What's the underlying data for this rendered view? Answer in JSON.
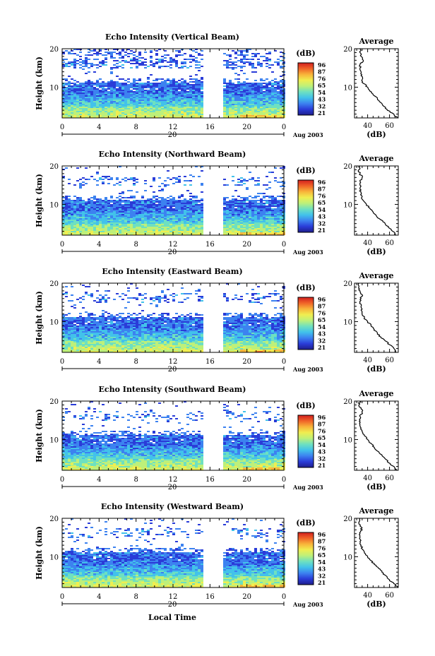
{
  "figure": {
    "xlabel": "Local Time",
    "ylabel": "Height (km)",
    "date_day": "20",
    "date_month": "Aug 2003",
    "colorbar_unit": "(dB)",
    "colorbar_ticks": [
      "96",
      "87",
      "76",
      "65",
      "54",
      "43",
      "32",
      "21"
    ],
    "average_title": "Average",
    "average_xlabel": "(dB)",
    "colormap": [
      "#1e1e8c",
      "#2a3cd8",
      "#3c82f0",
      "#42c2ea",
      "#6ee0c0",
      "#bdf07a",
      "#f0ee50",
      "#f8b43a",
      "#f06428",
      "#d21e1e"
    ]
  },
  "chart_data": [
    {
      "type": "heatmap",
      "title": "Echo Intensity (Vertical Beam)",
      "x_ticks": [
        "0",
        "4",
        "8",
        "12",
        "16",
        "20",
        "0"
      ],
      "xlim": [
        0,
        24
      ],
      "ylim": [
        2,
        20
      ],
      "y_ticks": [
        "10",
        "20"
      ],
      "gap_hours": [
        15.4,
        17.3
      ],
      "colorbar_range_db": [
        21,
        96
      ],
      "profile": {
        "title": "Average",
        "x_ticks": [
          "40",
          "60"
        ],
        "xlim": [
          28,
          68
        ],
        "height_km": [
          2,
          3,
          4,
          5,
          6,
          7,
          8,
          9,
          10,
          11,
          12,
          13,
          14,
          15,
          16,
          17,
          18,
          19,
          20
        ],
        "db": [
          67,
          64,
          58,
          55,
          52,
          49,
          45,
          42,
          40,
          36,
          35,
          34,
          34,
          33,
          33,
          36,
          34,
          33,
          33
        ]
      }
    },
    {
      "type": "heatmap",
      "title": "Echo Intensity (Northward Beam)",
      "x_ticks": [
        "0",
        "4",
        "8",
        "12",
        "16",
        "20",
        "0"
      ],
      "xlim": [
        0,
        24
      ],
      "ylim": [
        2,
        20
      ],
      "y_ticks": [
        "10",
        "20"
      ],
      "gap_hours": [
        15.4,
        17.3
      ],
      "colorbar_range_db": [
        21,
        96
      ],
      "profile": {
        "title": "Average",
        "x_ticks": [
          "40",
          "60"
        ],
        "xlim": [
          28,
          68
        ],
        "height_km": [
          2,
          3,
          4,
          5,
          6,
          7,
          8,
          9,
          10,
          11,
          12,
          13,
          14,
          15,
          16,
          17,
          18,
          19,
          20
        ],
        "db": [
          66,
          63,
          59,
          56,
          52,
          48,
          45,
          42,
          39,
          36,
          35,
          34,
          33,
          33,
          33,
          35,
          33,
          32,
          33
        ]
      }
    },
    {
      "type": "heatmap",
      "title": "Echo Intensity (Eastward Beam)",
      "x_ticks": [
        "0",
        "4",
        "8",
        "12",
        "16",
        "20",
        "0"
      ],
      "xlim": [
        0,
        24
      ],
      "ylim": [
        2,
        20
      ],
      "y_ticks": [
        "10",
        "20"
      ],
      "gap_hours": [
        15.4,
        17.3
      ],
      "colorbar_range_db": [
        21,
        96
      ],
      "profile": {
        "title": "Average",
        "x_ticks": [
          "40",
          "60"
        ],
        "xlim": [
          28,
          68
        ],
        "height_km": [
          2,
          3,
          4,
          5,
          6,
          7,
          8,
          9,
          10,
          11,
          12,
          13,
          14,
          15,
          16,
          17,
          18,
          19,
          20
        ],
        "db": [
          66,
          64,
          60,
          56,
          52,
          49,
          46,
          43,
          40,
          37,
          35,
          34,
          34,
          33,
          34,
          35,
          33,
          32,
          32
        ]
      }
    },
    {
      "type": "heatmap",
      "title": "Echo Intensity (Southward Beam)",
      "x_ticks": [
        "0",
        "4",
        "8",
        "12",
        "16",
        "20",
        "0"
      ],
      "xlim": [
        0,
        24
      ],
      "ylim": [
        2,
        20
      ],
      "y_ticks": [
        "10",
        "20"
      ],
      "gap_hours": [
        15.4,
        17.3
      ],
      "colorbar_range_db": [
        21,
        96
      ],
      "profile": {
        "title": "Average",
        "x_ticks": [
          "40",
          "60"
        ],
        "xlim": [
          28,
          68
        ],
        "height_km": [
          2,
          3,
          4,
          5,
          6,
          7,
          8,
          9,
          10,
          11,
          12,
          13,
          14,
          15,
          16,
          17,
          18,
          19,
          20
        ],
        "db": [
          67,
          64,
          59,
          56,
          53,
          49,
          46,
          43,
          40,
          37,
          35,
          34,
          33,
          33,
          33,
          35,
          34,
          32,
          33
        ]
      }
    },
    {
      "type": "heatmap",
      "title": "Echo Intensity (Westward Beam)",
      "x_ticks": [
        "0",
        "4",
        "8",
        "12",
        "16",
        "20",
        "0"
      ],
      "xlim": [
        0,
        24
      ],
      "ylim": [
        2,
        20
      ],
      "y_ticks": [
        "10",
        "20"
      ],
      "gap_hours": [
        15.4,
        17.3
      ],
      "colorbar_range_db": [
        21,
        96
      ],
      "profile": {
        "title": "Average",
        "x_ticks": [
          "40",
          "60"
        ],
        "xlim": [
          28,
          68
        ],
        "height_km": [
          2,
          3,
          4,
          5,
          6,
          7,
          8,
          9,
          10,
          11,
          12,
          13,
          14,
          15,
          16,
          17,
          18,
          19,
          20
        ],
        "db": [
          67,
          64,
          60,
          57,
          53,
          50,
          46,
          43,
          40,
          37,
          35,
          34,
          33,
          33,
          33,
          35,
          33,
          32,
          33
        ]
      }
    }
  ]
}
